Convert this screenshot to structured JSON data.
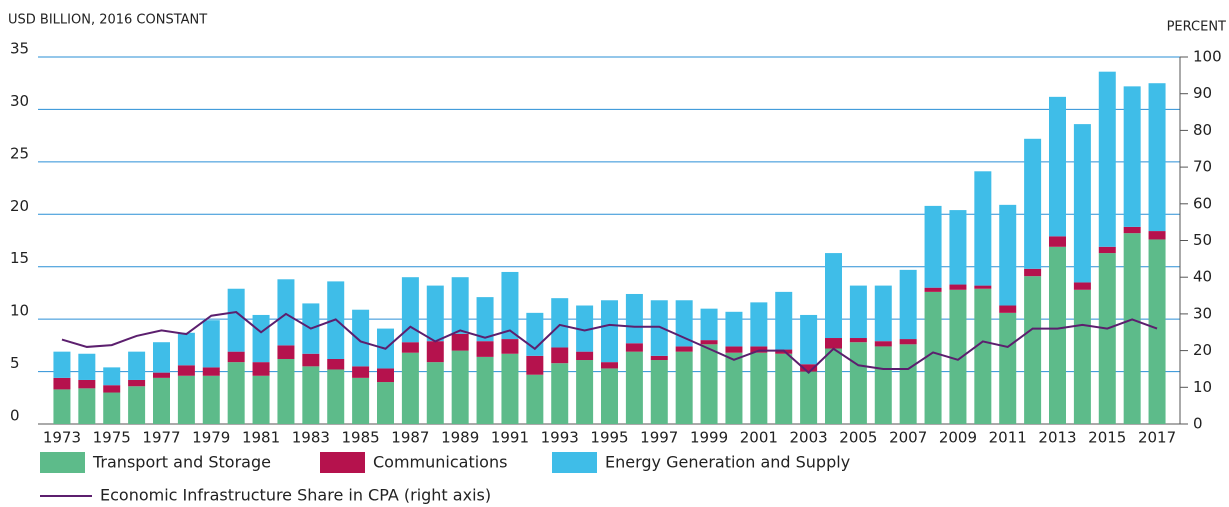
{
  "chart_data": {
    "type": "bar",
    "stacked": true,
    "y_axis_label": "USD BILLION, 2016 CONSTANT",
    "y2_axis_label": "PERCENT",
    "categories": [
      "1973",
      null,
      "1975",
      null,
      "1977",
      null,
      "1979",
      null,
      "1981",
      null,
      "1983",
      null,
      "1985",
      null,
      "1987",
      null,
      "1989",
      null,
      "1991",
      null,
      "1993",
      null,
      "1995",
      null,
      "1997",
      null,
      "1999",
      null,
      "2001",
      null,
      "2003",
      null,
      "2005",
      null,
      "2007",
      null,
      "2009",
      null,
      "2011",
      null,
      "2013",
      null,
      "2015",
      null,
      "2017"
    ],
    "series": [
      {
        "name": "Transport and Storage",
        "color": "#5dbb8a",
        "values": [
          3.3,
          3.4,
          3.0,
          3.6,
          4.4,
          4.6,
          4.6,
          5.9,
          4.6,
          6.2,
          5.5,
          5.2,
          4.4,
          4.0,
          6.8,
          5.9,
          7.0,
          6.4,
          6.7,
          4.7,
          5.8,
          6.1,
          5.3,
          6.9,
          6.1,
          6.9,
          7.6,
          6.8,
          6.8,
          6.7,
          5.0,
          7.2,
          7.8,
          7.4,
          7.6,
          12.6,
          12.8,
          12.9,
          10.6,
          14.1,
          16.9,
          12.8,
          16.3,
          18.2,
          17.6
        ]
      },
      {
        "name": "Communications",
        "color": "#b5124d",
        "values": [
          1.1,
          0.8,
          0.7,
          0.6,
          0.5,
          1.0,
          0.8,
          1.0,
          1.3,
          1.3,
          1.2,
          1.0,
          1.1,
          1.3,
          1.0,
          2.0,
          1.6,
          1.5,
          1.4,
          1.8,
          1.5,
          0.8,
          0.6,
          0.8,
          0.4,
          0.5,
          0.4,
          0.6,
          0.6,
          0.4,
          0.7,
          1.0,
          0.4,
          0.5,
          0.5,
          0.4,
          0.5,
          0.3,
          0.7,
          0.7,
          1.0,
          0.7,
          0.6,
          0.6,
          0.8
        ]
      },
      {
        "name": "Energy Generation and Supply",
        "color": "#3fbde8",
        "values": [
          2.5,
          2.5,
          1.7,
          2.7,
          2.9,
          3.1,
          4.5,
          6.0,
          4.5,
          6.3,
          4.8,
          7.4,
          5.4,
          3.8,
          6.2,
          5.3,
          5.4,
          4.2,
          6.4,
          4.1,
          4.7,
          4.4,
          5.9,
          4.7,
          5.3,
          4.4,
          3.0,
          3.3,
          4.2,
          5.5,
          4.7,
          8.1,
          5.0,
          5.3,
          6.6,
          7.8,
          7.1,
          10.9,
          9.6,
          12.4,
          13.3,
          15.1,
          16.7,
          13.4,
          14.1
        ]
      },
      {
        "name": "Economic Infrastructure Share in CPA (right axis)",
        "type": "line",
        "axis": "y2",
        "color": "#5c1f6e",
        "values": [
          23,
          21,
          21.5,
          24,
          25.5,
          24.5,
          29.5,
          30.5,
          25,
          30,
          26,
          28.5,
          22.5,
          20.5,
          26.5,
          22.5,
          25.5,
          23.5,
          25.5,
          20.5,
          27,
          25.5,
          27,
          26.5,
          26.5,
          23.5,
          20.5,
          17.5,
          20,
          20,
          14,
          20.5,
          16,
          15,
          15,
          19.5,
          17.5,
          22.5,
          21,
          26,
          26,
          27,
          26,
          28.5,
          26
        ]
      }
    ],
    "ylim": [
      0,
      35
    ],
    "yticks": [
      0,
      5,
      10,
      15,
      20,
      25,
      30,
      35
    ],
    "y2lim": [
      0,
      100
    ],
    "y2ticks": [
      0,
      10,
      20,
      30,
      40,
      50,
      60,
      70,
      80,
      90,
      100
    ],
    "grid": true,
    "legend": "bottom"
  }
}
